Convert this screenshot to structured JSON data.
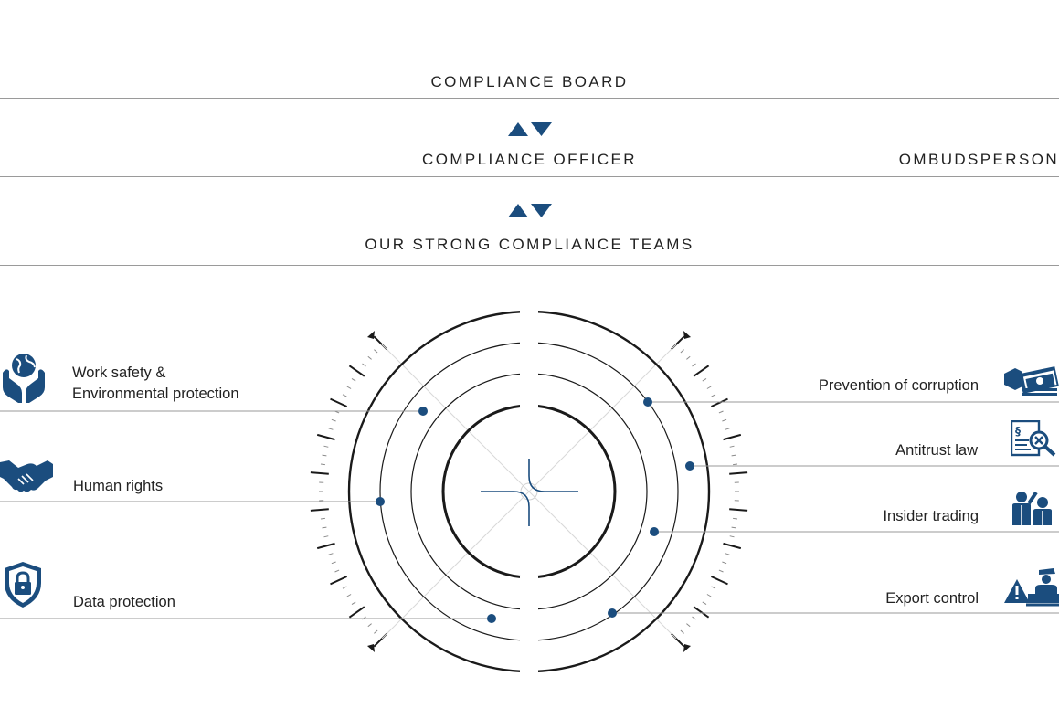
{
  "hierarchy": {
    "board": "COMPLIANCE BOARD",
    "officer": "COMPLIANCE OFFICER",
    "ombudsperson": "OMBUDSPERSON",
    "teams": "OUR STRONG COMPLIANCE TEAMS"
  },
  "topics_left": [
    {
      "label_1": "Work safety &",
      "label_2": "Environmental protection",
      "icon": "globe-hands-icon"
    },
    {
      "label_1": "Human rights",
      "icon": "handshake-icon"
    },
    {
      "label_1": "Data protection",
      "icon": "shield-lock-icon"
    }
  ],
  "topics_right": [
    {
      "label_1": "Prevention of corruption",
      "icon": "money-hand-icon"
    },
    {
      "label_1": "Antitrust law",
      "icon": "document-search-icon"
    },
    {
      "label_1": "Insider trading",
      "icon": "people-talking-icon"
    },
    {
      "label_1": "Export control",
      "icon": "customs-officer-icon"
    }
  ],
  "colors": {
    "accent": "#1b4d7e",
    "line": "#9a9a9a",
    "text": "#222222"
  }
}
